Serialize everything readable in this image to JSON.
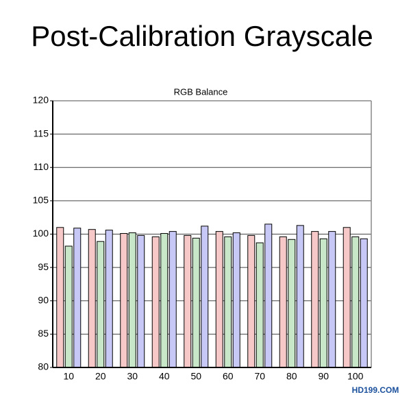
{
  "chart_data": {
    "type": "bar",
    "title": "Post-Calibration Grayscale",
    "subtitle": "RGB Balance",
    "watermark": "HD199.COM",
    "categories": [
      "10",
      "20",
      "30",
      "40",
      "50",
      "60",
      "70",
      "80",
      "90",
      "100"
    ],
    "series": [
      {
        "color": "#f6c8c8",
        "values": [
          101.0,
          100.7,
          100.1,
          99.6,
          99.8,
          100.4,
          99.8,
          99.6,
          100.4,
          101.0
        ]
      },
      {
        "color": "#c8e6c8",
        "values": [
          98.2,
          98.9,
          100.2,
          100.1,
          99.4,
          99.6,
          98.7,
          99.2,
          99.3,
          99.6
        ]
      },
      {
        "color": "#c8c8f6",
        "values": [
          100.9,
          100.6,
          99.8,
          100.4,
          101.2,
          100.2,
          101.5,
          101.3,
          100.4,
          99.3
        ]
      }
    ],
    "ylim": [
      80,
      120
    ],
    "yticks": [
      80,
      85,
      90,
      95,
      100,
      105,
      110,
      115,
      120
    ],
    "grid": true
  }
}
